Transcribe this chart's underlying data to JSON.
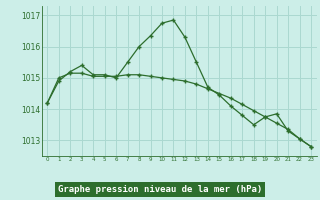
{
  "hours": [
    0,
    1,
    2,
    3,
    4,
    5,
    6,
    7,
    8,
    9,
    10,
    11,
    12,
    13,
    14,
    15,
    16,
    17,
    18,
    19,
    20,
    21,
    22,
    23
  ],
  "line1": [
    1014.2,
    1014.9,
    1015.2,
    1015.4,
    1015.1,
    1015.1,
    1015.0,
    1015.5,
    1016.0,
    1016.35,
    1016.75,
    1016.85,
    1016.3,
    1015.5,
    1014.7,
    1014.45,
    1014.1,
    1013.8,
    1013.5,
    1013.75,
    1013.85,
    1013.3,
    1013.05,
    1012.8
  ],
  "line2": [
    1014.2,
    1015.0,
    1015.15,
    1015.15,
    1015.05,
    1015.05,
    1015.05,
    1015.1,
    1015.1,
    1015.05,
    1015.0,
    1014.95,
    1014.9,
    1014.8,
    1014.65,
    1014.5,
    1014.35,
    1014.15,
    1013.95,
    1013.75,
    1013.55,
    1013.35,
    1013.05,
    1012.8
  ],
  "ylim": [
    1012.5,
    1017.3
  ],
  "yticks": [
    1013,
    1014,
    1015,
    1016,
    1017
  ],
  "line_color": "#2d6e2d",
  "bg_color": "#cceee8",
  "grid_color": "#aad8d0",
  "xlabel": "Graphe pression niveau de la mer (hPa)",
  "xlabel_bg": "#2d6e2d",
  "xlabel_fg": "#ffffff"
}
